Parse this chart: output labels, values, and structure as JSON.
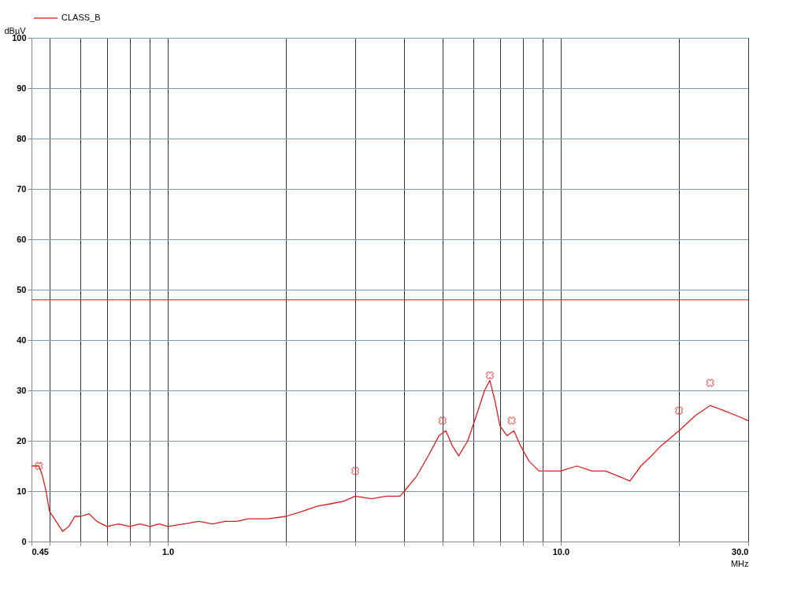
{
  "chart_data": {
    "type": "line",
    "xlabel": "MHz",
    "ylabel": "dBµV",
    "log": "x",
    "xlim": [
      0.45,
      30
    ],
    "ylim": [
      0,
      100
    ],
    "xticks": [
      0.45,
      {
        "value": 0.5,
        "label": null
      },
      {
        "value": 0.6,
        "label": null
      },
      {
        "value": 0.7,
        "label": null
      },
      {
        "value": 0.8,
        "label": null
      },
      {
        "value": 0.9,
        "label": null
      },
      {
        "value": 1,
        "label": "1.0"
      },
      {
        "value": 2,
        "label": null
      },
      {
        "value": 3,
        "label": null
      },
      {
        "value": 4,
        "label": null
      },
      {
        "value": 5,
        "label": null
      },
      {
        "value": 6,
        "label": null
      },
      {
        "value": 7,
        "label": null
      },
      {
        "value": 8,
        "label": null
      },
      {
        "value": 9,
        "label": null
      },
      {
        "value": 10,
        "label": "10.0"
      },
      {
        "value": 20,
        "label": null
      },
      {
        "value": 30,
        "label": "30.0"
      }
    ],
    "yticks": [
      0,
      10,
      20,
      30,
      40,
      50,
      60,
      70,
      80,
      90,
      100
    ],
    "grid": true,
    "legend": "top",
    "series": [
      {
        "name": "CLASS_B",
        "color": "#e03a3a",
        "line_style": "solid",
        "x": [
          0.45,
          30
        ],
        "values": [
          48,
          48
        ]
      },
      {
        "color": "#d42020",
        "line_style": "solid",
        "x": [
          0.45,
          0.47,
          0.48,
          0.49,
          0.5,
          0.52,
          0.54,
          0.56,
          0.58,
          0.6,
          0.63,
          0.66,
          0.7,
          0.75,
          0.8,
          0.85,
          0.9,
          0.95,
          1.0,
          1.1,
          1.2,
          1.3,
          1.4,
          1.5,
          1.6,
          1.8,
          2.0,
          2.2,
          2.4,
          2.6,
          2.8,
          3.0,
          3.3,
          3.6,
          3.9,
          4.0,
          4.3,
          4.6,
          4.9,
          5.1,
          5.3,
          5.5,
          5.8,
          6.1,
          6.4,
          6.6,
          6.8,
          7.0,
          7.3,
          7.6,
          7.9,
          8.3,
          8.8,
          9.5,
          10,
          11,
          12,
          13,
          14,
          15,
          16,
          17,
          18,
          20,
          22,
          24,
          26,
          28,
          30
        ],
        "values": [
          15,
          15,
          13,
          10,
          6,
          4,
          2,
          3,
          5,
          5,
          5.5,
          4,
          3,
          3.5,
          3,
          3.5,
          3,
          3.5,
          3,
          3.5,
          4,
          3.5,
          4,
          4,
          4.5,
          4.5,
          5,
          6,
          7,
          7.5,
          8,
          9,
          8.5,
          9,
          9,
          10,
          13,
          17,
          21,
          22,
          19,
          17,
          20,
          25,
          30,
          32,
          28,
          23,
          21,
          22,
          19,
          16,
          14,
          14,
          14,
          15,
          14,
          14,
          13,
          12,
          15,
          17,
          19,
          22,
          25,
          27,
          26,
          25,
          24
        ]
      },
      {
        "color": "#d42020",
        "type": "scatter",
        "marker": "cross",
        "x": [
          0.47,
          3.0,
          5.0,
          6.6,
          7.5,
          20,
          24
        ],
        "values": [
          15,
          14,
          24,
          33,
          24,
          26,
          31.5
        ]
      }
    ]
  }
}
